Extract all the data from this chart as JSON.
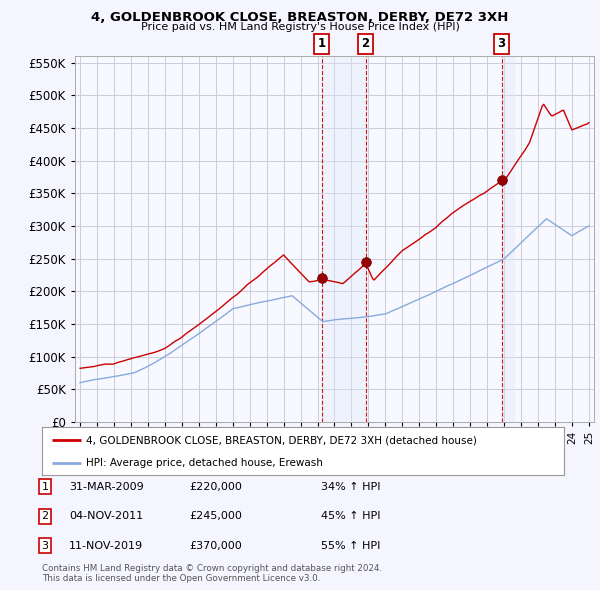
{
  "title": "4, GOLDENBROOK CLOSE, BREASTON, DERBY, DE72 3XH",
  "subtitle": "Price paid vs. HM Land Registry's House Price Index (HPI)",
  "legend_label_red": "4, GOLDENBROOK CLOSE, BREASTON, DERBY, DE72 3XH (detached house)",
  "legend_label_blue": "HPI: Average price, detached house, Erewash",
  "transactions": [
    {
      "num": 1,
      "date": "31-MAR-2009",
      "price": 220000,
      "hpi_pct": "34% ↑ HPI",
      "year": 2009.25
    },
    {
      "num": 2,
      "date": "04-NOV-2011",
      "price": 245000,
      "hpi_pct": "45% ↑ HPI",
      "year": 2011.83
    },
    {
      "num": 3,
      "date": "11-NOV-2019",
      "price": 370000,
      "hpi_pct": "55% ↑ HPI",
      "year": 2019.86
    }
  ],
  "footer_line1": "Contains HM Land Registry data © Crown copyright and database right 2024.",
  "footer_line2": "This data is licensed under the Open Government Licence v3.0.",
  "ylim": [
    0,
    560000
  ],
  "yticks": [
    0,
    50000,
    100000,
    150000,
    200000,
    250000,
    300000,
    350000,
    400000,
    450000,
    500000,
    550000
  ],
  "xlim_start": 1994.7,
  "xlim_end": 2025.3,
  "background_color": "#f5f5ff",
  "plot_bg_color": "#f8f8ff",
  "grid_color": "#ccccdd",
  "red_color": "#cc0000",
  "blue_color": "#88aadd",
  "shade_color": "#dde8f8"
}
